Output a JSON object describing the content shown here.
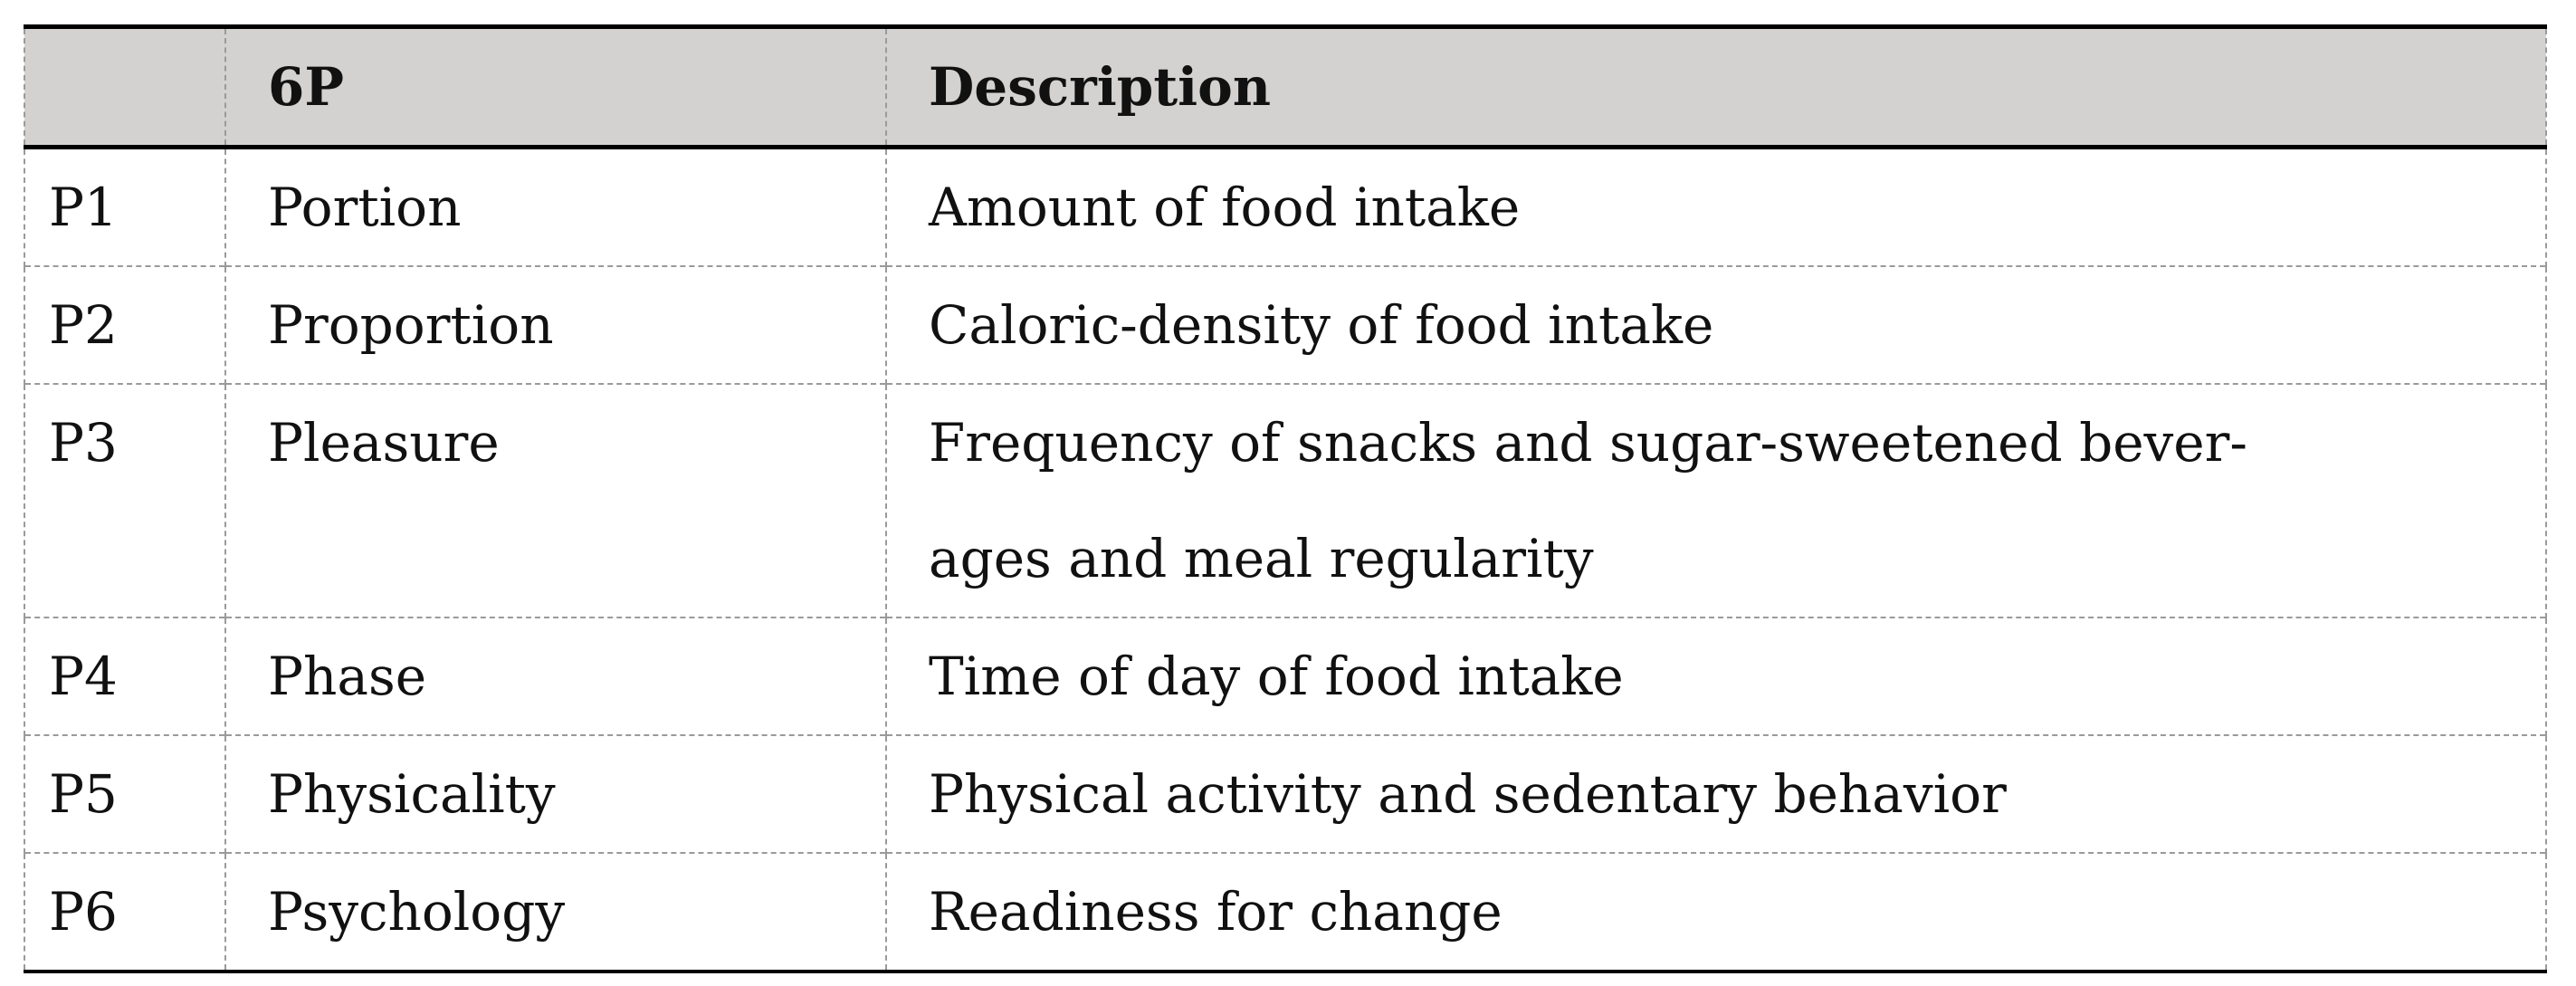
{
  "table": {
    "headers": [
      "",
      "6P",
      "Description"
    ],
    "rows": [
      {
        "id": "P1",
        "name": "Portion",
        "description": "Amount of food intake"
      },
      {
        "id": "P2",
        "name": "Proportion",
        "description": "Caloric-density of food intake"
      },
      {
        "id": "P3",
        "name": "Pleasure",
        "description_line1": "Frequency of snacks and sugar-sweetened bever-",
        "description_line2": "ages and meal regularity"
      },
      {
        "id": "P4",
        "name": "Phase",
        "description": "Time of day of food intake"
      },
      {
        "id": "P5",
        "name": "Physicality",
        "description": "Physical activity and sedentary behavior"
      },
      {
        "id": "P6",
        "name": "Psychology",
        "description": "Readiness for change"
      }
    ],
    "header_background": "#d3d2d0"
  }
}
